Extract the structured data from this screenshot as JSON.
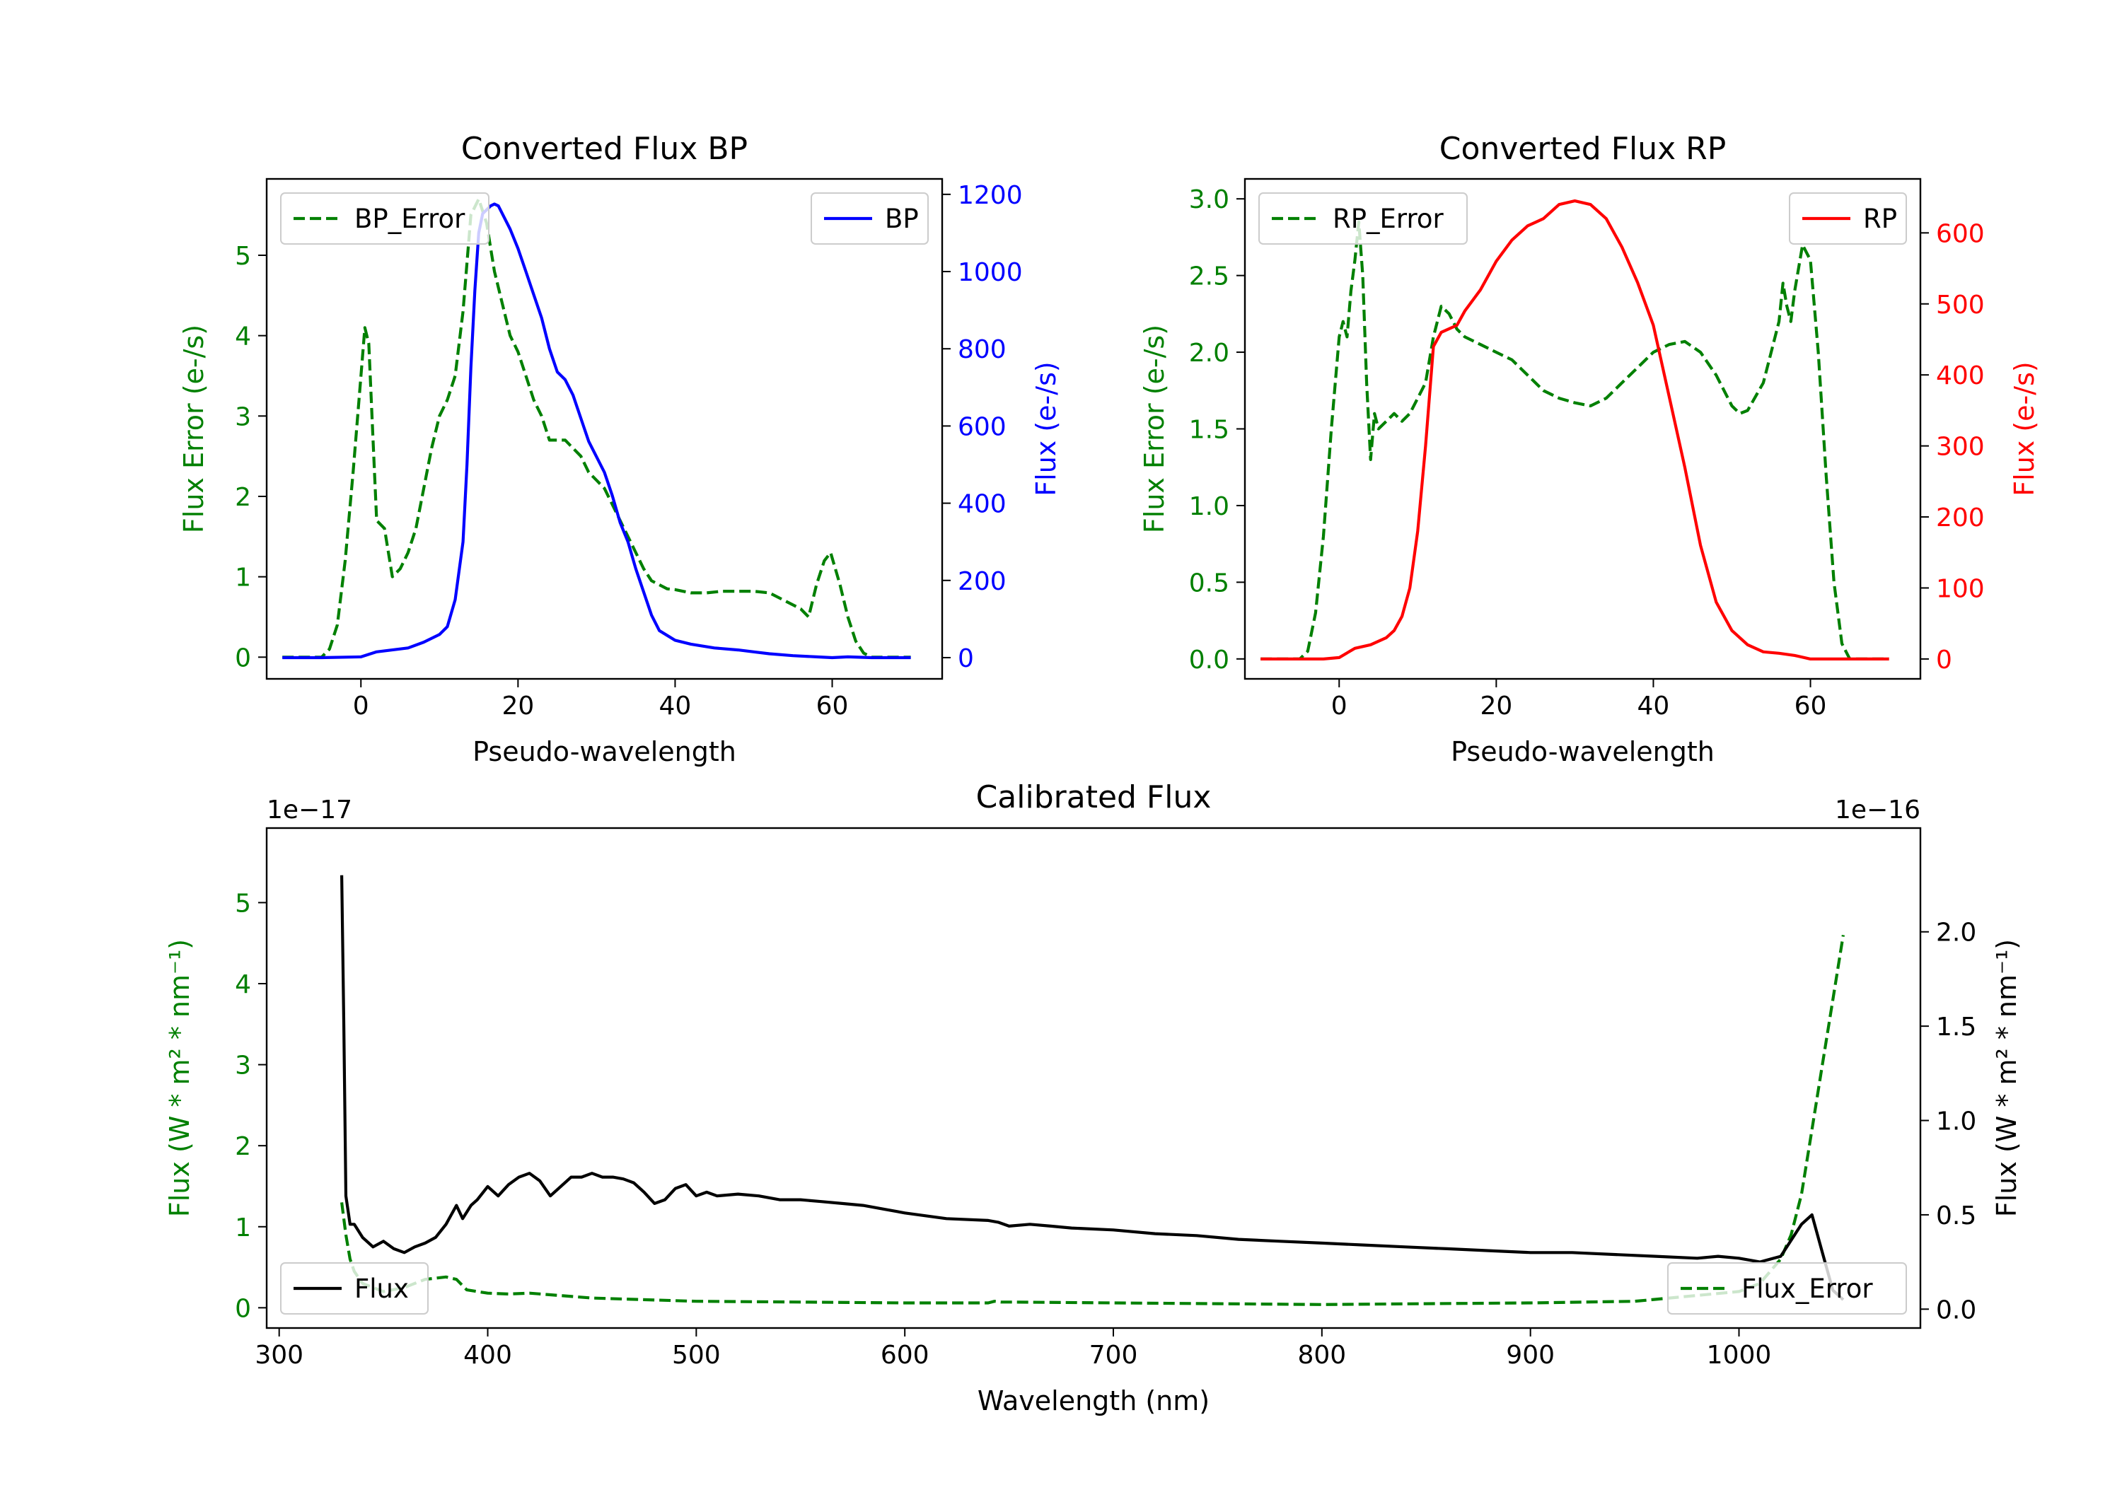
{
  "figure": {
    "colors": {
      "error": "#008000",
      "bp": "#0000ff",
      "rp": "#ff0000",
      "flux": "#000000",
      "axis": "#000000"
    }
  },
  "chart_data": [
    {
      "id": "bp",
      "type": "line",
      "title": "Converted Flux BP",
      "xlabel": "Pseudo-wavelength",
      "ylabel_left": "Flux Error (e-/s)",
      "ylabel_right": "Flux (e-/s)",
      "xlim": [
        -12,
        74
      ],
      "ylim_left": [
        -0.27,
        5.95
      ],
      "ylim_right": [
        -55,
        1240
      ],
      "xticks": [
        0,
        20,
        40,
        60
      ],
      "yticks_left": [
        0,
        1,
        2,
        3,
        4,
        5
      ],
      "yticks_right": [
        0,
        200,
        400,
        600,
        800,
        1000,
        1200
      ],
      "legend_left": "BP_Error",
      "legend_right": "BP",
      "series": [
        {
          "name": "BP_Error",
          "axis": "left",
          "style": "dashed",
          "color": "#008000",
          "x": [
            -10,
            -5,
            -4,
            -3,
            -2,
            -1,
            0,
            0.5,
            1,
            1.5,
            2,
            3,
            4,
            5,
            6,
            7,
            8,
            9,
            10,
            11,
            12,
            13,
            14,
            15,
            16,
            17,
            18,
            19,
            20,
            21,
            22,
            23,
            24,
            25,
            26,
            27,
            28,
            29,
            30,
            31,
            32,
            33,
            34,
            35,
            36,
            37,
            38,
            39,
            40,
            42,
            44,
            46,
            48,
            50,
            52,
            54,
            56,
            57,
            58,
            59,
            59.8,
            61,
            62,
            63,
            64,
            65,
            66,
            70
          ],
          "y": [
            0,
            0,
            0.1,
            0.4,
            1.2,
            2.3,
            3.5,
            4.1,
            3.9,
            2.8,
            1.7,
            1.6,
            1,
            1.1,
            1.3,
            1.6,
            2.1,
            2.6,
            3.0,
            3.2,
            3.5,
            4.3,
            5.5,
            5.7,
            5.4,
            4.8,
            4.4,
            4.0,
            3.8,
            3.5,
            3.2,
            3.0,
            2.7,
            2.7,
            2.7,
            2.6,
            2.5,
            2.3,
            2.2,
            2.1,
            1.9,
            1.7,
            1.5,
            1.3,
            1.1,
            0.95,
            0.9,
            0.85,
            0.84,
            0.8,
            0.8,
            0.82,
            0.82,
            0.82,
            0.8,
            0.7,
            0.6,
            0.5,
            0.9,
            1.2,
            1.3,
            0.9,
            0.5,
            0.2,
            0.05,
            0,
            0,
            0
          ]
        },
        {
          "name": "BP",
          "axis": "right",
          "style": "solid",
          "color": "#0000ff",
          "x": [
            -10,
            -5,
            0,
            2,
            4,
            6,
            8,
            10,
            11,
            12,
            13,
            13.5,
            14,
            14.5,
            15,
            15.5,
            16,
            16.5,
            17,
            17.5,
            18,
            19,
            20,
            21,
            22,
            23,
            24,
            25,
            26,
            27,
            28,
            29,
            30,
            31,
            32,
            33,
            34,
            35,
            36,
            37,
            38,
            40,
            42,
            45,
            48,
            50,
            52,
            55,
            58,
            60,
            62,
            65,
            70
          ],
          "y": [
            0,
            0,
            2,
            15,
            20,
            25,
            40,
            60,
            80,
            150,
            300,
            500,
            750,
            950,
            1100,
            1150,
            1160,
            1170,
            1175,
            1170,
            1150,
            1110,
            1060,
            1000,
            940,
            880,
            800,
            740,
            720,
            680,
            620,
            560,
            520,
            480,
            420,
            350,
            300,
            230,
            170,
            110,
            70,
            45,
            35,
            25,
            20,
            15,
            10,
            5,
            2,
            0,
            2,
            0,
            0
          ]
        }
      ]
    },
    {
      "id": "rp",
      "type": "line",
      "title": "Converted Flux RP",
      "xlabel": "Pseudo-wavelength",
      "ylabel_left": "Flux Error (e-/s)",
      "ylabel_right": "Flux (e-/s)",
      "xlim": [
        -12,
        74
      ],
      "ylim_left": [
        -0.13,
        3.13
      ],
      "ylim_right": [
        -28,
        676
      ],
      "xticks": [
        0,
        20,
        40,
        60
      ],
      "yticks_left": [
        0.0,
        0.5,
        1.0,
        1.5,
        2.0,
        2.5,
        3.0
      ],
      "yticks_right": [
        0,
        100,
        200,
        300,
        400,
        500,
        600
      ],
      "legend_left": "RP_Error",
      "legend_right": "RP",
      "series": [
        {
          "name": "RP_Error",
          "axis": "left",
          "style": "dashed",
          "color": "#008000",
          "x": [
            -10,
            -5,
            -4,
            -3,
            -2,
            -1,
            0,
            0.5,
            1,
            1.5,
            2,
            2.5,
            3,
            3.5,
            4,
            4.5,
            5,
            6,
            7,
            8,
            9,
            10,
            11,
            12,
            13,
            14,
            15,
            16,
            18,
            20,
            22,
            24,
            26,
            28,
            30,
            32,
            34,
            36,
            38,
            40,
            42,
            44,
            46,
            48,
            50,
            51,
            52,
            54,
            55,
            56,
            56.5,
            57,
            57.5,
            58,
            59,
            60,
            61,
            62,
            63,
            64,
            65,
            70
          ],
          "y": [
            0,
            0,
            0.05,
            0.3,
            0.8,
            1.5,
            2.1,
            2.2,
            2.1,
            2.4,
            2.6,
            2.85,
            2.5,
            1.8,
            1.3,
            1.6,
            1.5,
            1.55,
            1.6,
            1.55,
            1.6,
            1.7,
            1.8,
            2.1,
            2.3,
            2.25,
            2.15,
            2.1,
            2.05,
            2.0,
            1.95,
            1.85,
            1.75,
            1.7,
            1.67,
            1.65,
            1.7,
            1.8,
            1.9,
            2.0,
            2.05,
            2.07,
            2.0,
            1.85,
            1.65,
            1.6,
            1.62,
            1.8,
            2.0,
            2.2,
            2.45,
            2.3,
            2.2,
            2.4,
            2.7,
            2.6,
            2.0,
            1.2,
            0.5,
            0.1,
            0,
            0
          ]
        },
        {
          "name": "RP",
          "axis": "right",
          "style": "solid",
          "color": "#ff0000",
          "x": [
            -10,
            -5,
            -2,
            0,
            2,
            4,
            6,
            7,
            8,
            9,
            10,
            11,
            12,
            13,
            14,
            15,
            16,
            18,
            20,
            22,
            24,
            25,
            26,
            28,
            30,
            32,
            34,
            36,
            38,
            40,
            42,
            44,
            46,
            48,
            50,
            52,
            54,
            56,
            58,
            60,
            62,
            65,
            70
          ],
          "y": [
            0,
            0,
            0,
            2,
            15,
            20,
            30,
            40,
            60,
            100,
            180,
            300,
            440,
            460,
            465,
            470,
            490,
            520,
            560,
            590,
            610,
            615,
            620,
            640,
            645,
            640,
            620,
            580,
            530,
            470,
            370,
            270,
            160,
            80,
            40,
            20,
            10,
            8,
            5,
            0,
            0,
            0,
            0
          ]
        }
      ]
    },
    {
      "id": "calib",
      "type": "line",
      "title": "Calibrated Flux",
      "xlabel": "Wavelength (nm)",
      "ylabel_left": "Flux (W * m² * nm⁻¹)",
      "ylabel_right": "Flux (W * m² * nm⁻¹)",
      "offset_left": "1e−17",
      "offset_right": "1e−16",
      "xlim": [
        294,
        1087
      ],
      "ylim_left": [
        -0.25,
        5.92
      ],
      "ylim_right": [
        -0.1,
        2.55
      ],
      "xticks": [
        300,
        400,
        500,
        600,
        700,
        800,
        900,
        1000
      ],
      "yticks_left": [
        0,
        1,
        2,
        3,
        4,
        5
      ],
      "yticks_right": [
        0.0,
        0.5,
        1.0,
        1.5,
        2.0
      ],
      "legend_left": "Flux",
      "legend_right": "Flux_Error",
      "series": [
        {
          "name": "Flux",
          "axis": "right",
          "style": "solid",
          "color": "#000000",
          "x": [
            330,
            331,
            332,
            334,
            336,
            340,
            345,
            350,
            355,
            360,
            365,
            370,
            375,
            380,
            385,
            388,
            392,
            395,
            400,
            405,
            410,
            415,
            420,
            425,
            430,
            435,
            440,
            445,
            450,
            455,
            460,
            465,
            470,
            475,
            480,
            485,
            490,
            495,
            500,
            505,
            510,
            520,
            530,
            540,
            550,
            560,
            570,
            580,
            590,
            600,
            620,
            640,
            645,
            650,
            660,
            670,
            680,
            700,
            720,
            740,
            760,
            780,
            800,
            820,
            840,
            860,
            880,
            900,
            920,
            940,
            960,
            980,
            990,
            1000,
            1010,
            1020,
            1030,
            1035,
            1040,
            1045,
            1050
          ],
          "y": [
            2.3,
            1.5,
            0.6,
            0.45,
            0.45,
            0.38,
            0.33,
            0.36,
            0.32,
            0.3,
            0.33,
            0.35,
            0.38,
            0.45,
            0.55,
            0.48,
            0.55,
            0.58,
            0.65,
            0.6,
            0.66,
            0.7,
            0.72,
            0.68,
            0.6,
            0.65,
            0.7,
            0.7,
            0.72,
            0.7,
            0.7,
            0.69,
            0.67,
            0.62,
            0.56,
            0.58,
            0.64,
            0.66,
            0.6,
            0.62,
            0.6,
            0.61,
            0.6,
            0.58,
            0.58,
            0.57,
            0.56,
            0.55,
            0.53,
            0.51,
            0.48,
            0.47,
            0.46,
            0.44,
            0.45,
            0.44,
            0.43,
            0.42,
            0.4,
            0.39,
            0.37,
            0.36,
            0.35,
            0.34,
            0.33,
            0.32,
            0.31,
            0.3,
            0.3,
            0.29,
            0.28,
            0.27,
            0.28,
            0.27,
            0.25,
            0.28,
            0.45,
            0.5,
            0.3,
            0.1,
            0.05
          ]
        },
        {
          "name": "Flux_Error",
          "axis": "left",
          "style": "dashed",
          "color": "#008000",
          "x": [
            330,
            332,
            334,
            336,
            340,
            345,
            350,
            360,
            370,
            380,
            385,
            390,
            400,
            410,
            420,
            430,
            450,
            500,
            550,
            600,
            640,
            643,
            646,
            650,
            700,
            750,
            800,
            850,
            900,
            950,
            1000,
            1010,
            1020,
            1025,
            1030,
            1035,
            1040,
            1045,
            1050
          ],
          "y": [
            1.3,
            0.9,
            0.6,
            0.45,
            0.3,
            0.25,
            0.2,
            0.25,
            0.35,
            0.38,
            0.35,
            0.22,
            0.18,
            0.17,
            0.18,
            0.16,
            0.12,
            0.08,
            0.07,
            0.06,
            0.06,
            0.08,
            0.07,
            0.07,
            0.06,
            0.05,
            0.04,
            0.05,
            0.06,
            0.08,
            0.2,
            0.3,
            0.6,
            0.9,
            1.4,
            2.2,
            3.0,
            3.8,
            4.6
          ]
        }
      ]
    }
  ]
}
